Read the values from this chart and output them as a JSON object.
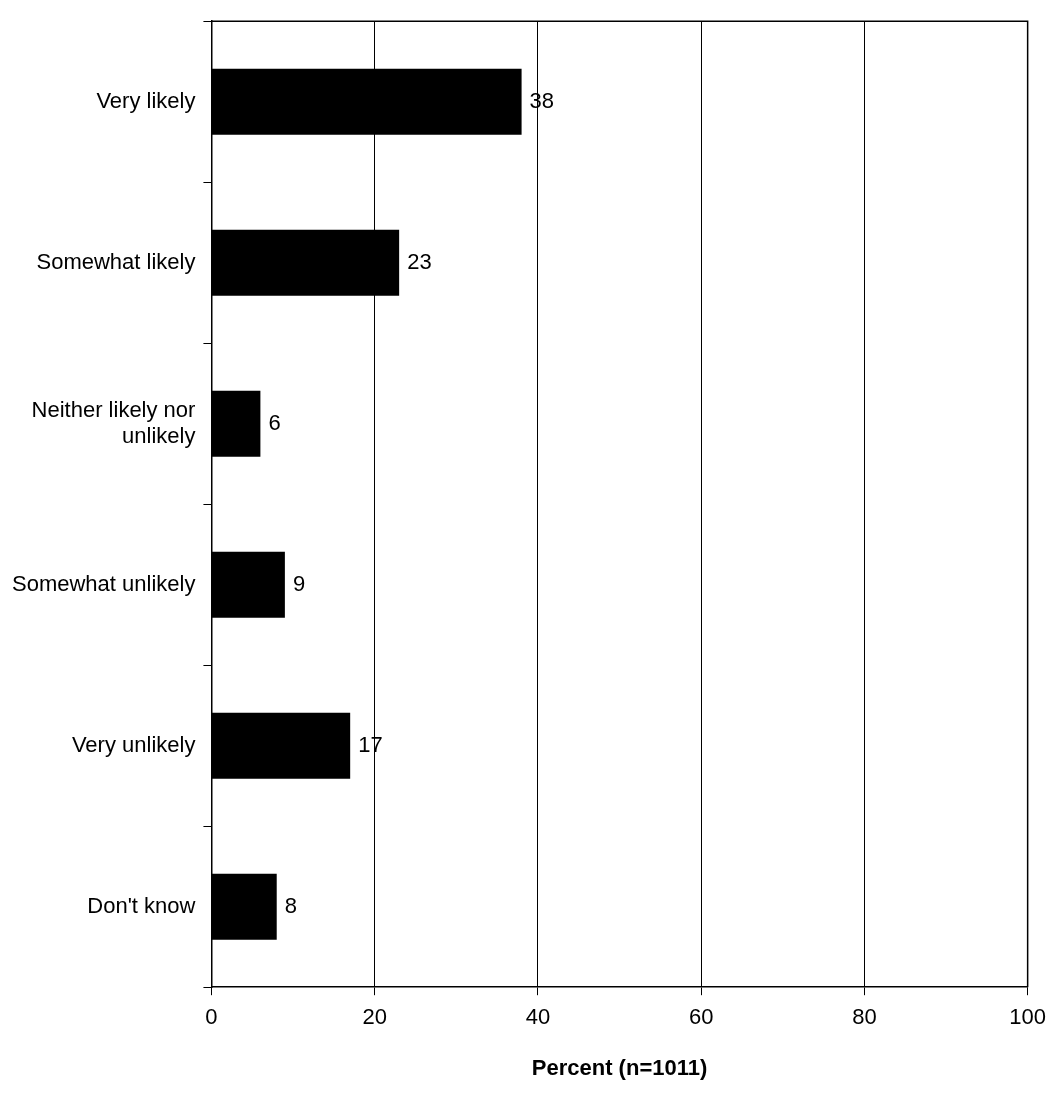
{
  "chart_data": {
    "type": "bar",
    "orientation": "horizontal",
    "categories": [
      "Very likely",
      "Somewhat likely",
      "Neither likely nor unlikely",
      "Somewhat unlikely",
      "Very unlikely",
      "Don't know"
    ],
    "values": [
      38,
      23,
      6,
      9,
      17,
      8
    ],
    "color": "#000000",
    "xlabel": "Percent (n=1011)",
    "xlim": [
      0,
      100
    ],
    "xticks": [
      0,
      20,
      40,
      60,
      80,
      100
    ],
    "grid": "x",
    "data_labels": true,
    "legend": false
  }
}
